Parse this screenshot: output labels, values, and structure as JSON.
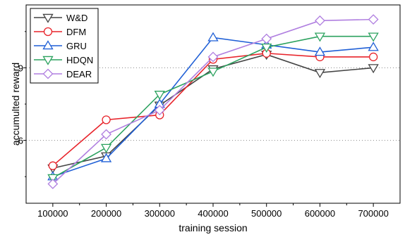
{
  "chart_data": {
    "type": "line",
    "title": "",
    "xlabel": "training session",
    "ylabel": "accumulted reward",
    "x": [
      100000,
      200000,
      300000,
      400000,
      500000,
      600000,
      700000
    ],
    "xlim": [
      50000,
      750000
    ],
    "ylim": [
      3.4,
      11.6
    ],
    "xticks": [
      100000,
      200000,
      300000,
      400000,
      500000,
      600000,
      700000
    ],
    "yticks": [
      6,
      9
    ],
    "grid": "horizontal dotted at y ticks",
    "legend_position": "top-left",
    "series": [
      {
        "name": "W&D",
        "color": "#444444",
        "marker": "triangle-down",
        "values": [
          4.85,
          5.35,
          7.45,
          8.95,
          9.55,
          8.8,
          9.0
        ]
      },
      {
        "name": "DFM",
        "color": "#e8232a",
        "marker": "circle",
        "values": [
          4.95,
          6.85,
          7.05,
          9.35,
          9.6,
          9.45,
          9.45
        ]
      },
      {
        "name": "GRU",
        "color": "#1f5fd6",
        "marker": "triangle-up",
        "values": [
          4.5,
          5.25,
          7.5,
          10.25,
          9.95,
          9.65,
          9.85
        ]
      },
      {
        "name": "HDQN",
        "color": "#2ca25f",
        "marker": "triangle-down",
        "values": [
          4.45,
          5.7,
          7.9,
          8.85,
          9.85,
          10.3,
          10.3
        ]
      },
      {
        "name": "DEAR",
        "color": "#b07fe0",
        "marker": "diamond",
        "values": [
          4.2,
          6.25,
          7.25,
          9.45,
          10.2,
          10.95,
          11.0
        ]
      }
    ]
  }
}
